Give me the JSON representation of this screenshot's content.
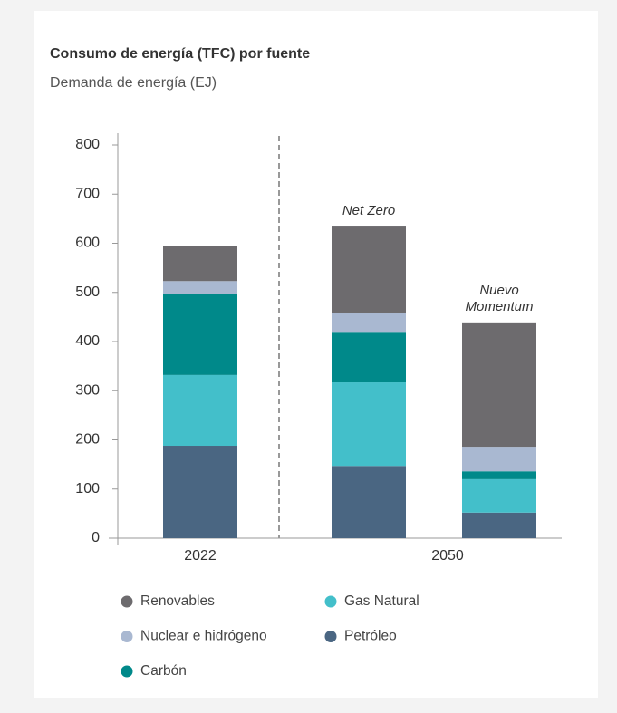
{
  "chart_data": {
    "type": "stacked_bar",
    "title": "Consumo de energía (TFC) por fuente",
    "subtitle": "Demanda de energía (EJ)",
    "x_labels": [
      "2022",
      "2050"
    ],
    "bar_annotations": [
      null,
      "Net Zero",
      "Nuevo Momentum"
    ],
    "series": [
      {
        "name": "Petróleo",
        "color": "#4a6682",
        "values": [
          188,
          147,
          52
        ]
      },
      {
        "name": "Gas Natural",
        "color": "#43bfca",
        "values": [
          144,
          170,
          68
        ]
      },
      {
        "name": "Carbón",
        "color": "#00898a",
        "values": [
          164,
          101,
          16
        ]
      },
      {
        "name": "Nuclear e hidrógeno",
        "color": "#a9b8d1",
        "values": [
          27,
          41,
          50
        ]
      },
      {
        "name": "Renovables",
        "color": "#6d6b6e",
        "values": [
          72,
          175,
          253
        ]
      }
    ],
    "ylim": [
      0,
      800
    ],
    "yticks": [
      0,
      100,
      200,
      300,
      400,
      500,
      600,
      700,
      800
    ],
    "grid": false
  }
}
